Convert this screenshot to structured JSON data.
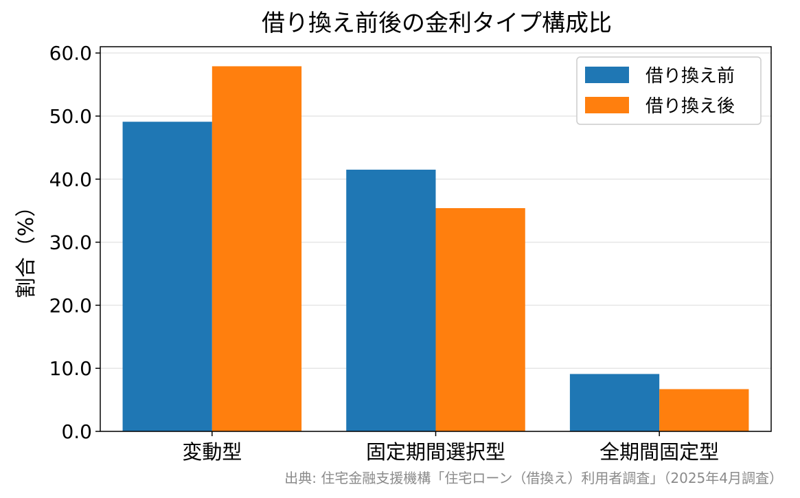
{
  "chart_data": {
    "type": "bar",
    "title": "借り換え前後の金利タイプ構成比",
    "ylabel": "割合（%）",
    "xlabel": "",
    "categories": [
      "変動型",
      "固定期間選択型",
      "全期間固定型"
    ],
    "series": [
      {
        "name": "借り換え前",
        "color": "#1f77b4",
        "values": [
          49.1,
          41.5,
          9.1
        ]
      },
      {
        "name": "借り換え後",
        "color": "#ff7f0e",
        "values": [
          57.9,
          35.4,
          6.7
        ]
      }
    ],
    "ylim": [
      0,
      61
    ],
    "yticks": [
      "0.0",
      "10.0",
      "20.0",
      "30.0",
      "40.0",
      "50.0",
      "60.0"
    ],
    "grid": "horizontal",
    "legend_position": "top-right",
    "source": "出典: 住宅金融支援機構「住宅ローン（借換え）利用者調査」（2025年4月調査）"
  }
}
